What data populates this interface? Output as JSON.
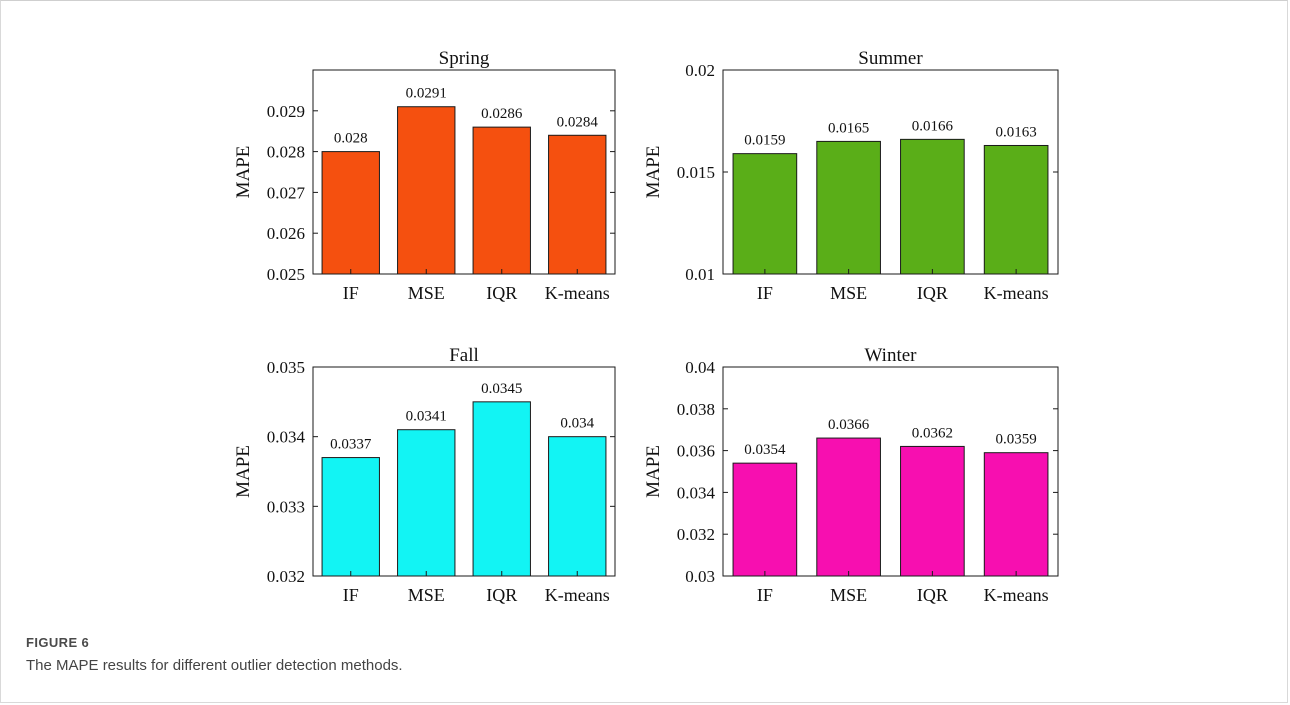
{
  "figure": {
    "label": "FIGURE 6",
    "caption": "The MAPE results for different outlier detection methods."
  },
  "chart_data": [
    {
      "type": "bar",
      "title": "Spring",
      "ylabel": "MAPE",
      "categories": [
        "IF",
        "MSE",
        "IQR",
        "K-means"
      ],
      "values": [
        0.028,
        0.0291,
        0.0286,
        0.0284
      ],
      "data_labels": [
        "0.028",
        "0.0291",
        "0.0286",
        "0.0284"
      ],
      "ylim": [
        0.025,
        0.03
      ],
      "yticks": [
        0.025,
        0.026,
        0.027,
        0.028,
        0.029
      ],
      "ytick_labels": [
        "0.025",
        "0.026",
        "0.027",
        "0.028",
        "0.029"
      ],
      "color": "#F5500F",
      "grid": false
    },
    {
      "type": "bar",
      "title": "Summer",
      "ylabel": "MAPE",
      "categories": [
        "IF",
        "MSE",
        "IQR",
        "K-means"
      ],
      "values": [
        0.0159,
        0.0165,
        0.0166,
        0.0163
      ],
      "data_labels": [
        "0.0159",
        "0.0165",
        "0.0166",
        "0.0163"
      ],
      "ylim": [
        0.01,
        0.02
      ],
      "yticks": [
        0.01,
        0.015,
        0.02
      ],
      "ytick_labels": [
        "0.01",
        "0.015",
        "0.02"
      ],
      "color": "#5AAE18",
      "grid": false
    },
    {
      "type": "bar",
      "title": "Fall",
      "ylabel": "MAPE",
      "categories": [
        "IF",
        "MSE",
        "IQR",
        "K-means"
      ],
      "values": [
        0.0337,
        0.0341,
        0.0345,
        0.034
      ],
      "data_labels": [
        "0.0337",
        "0.0341",
        "0.0345",
        "0.034"
      ],
      "ylim": [
        0.032,
        0.035
      ],
      "yticks": [
        0.032,
        0.033,
        0.034,
        0.035
      ],
      "ytick_labels": [
        "0.032",
        "0.033",
        "0.034",
        "0.035"
      ],
      "color": "#12F4F4",
      "grid": false
    },
    {
      "type": "bar",
      "title": "Winter",
      "ylabel": "MAPE",
      "categories": [
        "IF",
        "MSE",
        "IQR",
        "K-means"
      ],
      "values": [
        0.0354,
        0.0366,
        0.0362,
        0.0359
      ],
      "data_labels": [
        "0.0354",
        "0.0366",
        "0.0362",
        "0.0359"
      ],
      "ylim": [
        0.03,
        0.04
      ],
      "yticks": [
        0.03,
        0.032,
        0.034,
        0.036,
        0.038,
        0.04
      ],
      "ytick_labels": [
        "0.03",
        "0.032",
        "0.034",
        "0.036",
        "0.038",
        "0.04"
      ],
      "color": "#F70FB0",
      "grid": false
    }
  ]
}
